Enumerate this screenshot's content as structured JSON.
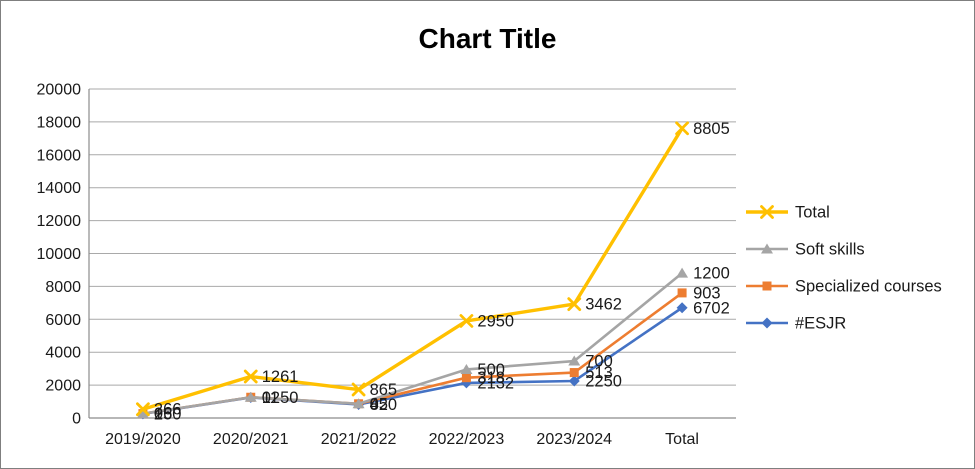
{
  "window": {
    "background": "#FFFFFF",
    "border_color": "#7F7F7F"
  },
  "chart_data": {
    "type": "line",
    "stacked": true,
    "title": "Chart Title",
    "categories": [
      "2019/2020",
      "2020/2021",
      "2021/2022",
      "2022/2023",
      "2023/2024",
      "Total"
    ],
    "series": [
      {
        "name": "#ESJR",
        "color": "#4472C4",
        "marker": "diamond",
        "line_width": 2.6,
        "values": [
          250,
          1250,
          820,
          2132,
          2250,
          6702
        ]
      },
      {
        "name": "Specialized courses",
        "color": "#ED7D31",
        "marker": "square",
        "line_width": 2.6,
        "values": [
          16,
          11,
          45,
          318,
          513,
          903
        ]
      },
      {
        "name": "Soft skills",
        "color": "#A5A5A5",
        "marker": "triangle",
        "line_width": 2.6,
        "values": [
          0,
          0,
          0,
          500,
          700,
          1200
        ]
      },
      {
        "name": "Total",
        "color": "#FFC000",
        "marker": "x",
        "line_width": 3.4,
        "values": [
          266,
          1261,
          865,
          2950,
          3462,
          8805
        ]
      }
    ],
    "legend_order": [
      "Total",
      "Soft skills",
      "Specialized courses",
      "#ESJR"
    ],
    "legend_position": "right",
    "data_labels": true,
    "ylim": [
      0,
      20000
    ],
    "y_ticks": [
      0,
      2000,
      4000,
      6000,
      8000,
      10000,
      12000,
      14000,
      16000,
      18000,
      20000
    ],
    "grid": true,
    "axis_color": "#8C8C8C",
    "gridline_color": "#A9A9A9",
    "tick_label_color": "#1A1A1A",
    "data_label_color": "#1A1A1A",
    "legend_label_color": "#1A1A1A"
  }
}
